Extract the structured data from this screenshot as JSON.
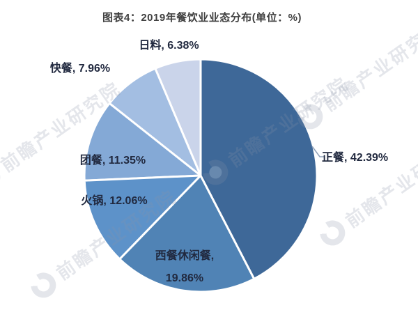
{
  "title": "图表4：2019年餐饮业业态分布(单位：%)",
  "watermark": {
    "text": "前瞻产业研究院"
  },
  "chart_data": {
    "type": "pie",
    "title": "图表4：2019年餐饮业业态分布(单位：%)",
    "unit": "%",
    "categories": [
      "正餐",
      "西餐休闲餐",
      "火锅",
      "团餐",
      "快餐",
      "日料"
    ],
    "values": [
      42.39,
      19.86,
      12.06,
      11.35,
      7.96,
      6.38
    ],
    "labels": [
      "正餐, 42.39%",
      "西餐休闲餐, 19.86%",
      "火锅, 12.06%",
      "团餐, 11.35%",
      "快餐, 7.96%",
      "日料, 6.38%"
    ],
    "colors": [
      "#3E6898",
      "#5083B5",
      "#5D92C9",
      "#84A9D6",
      "#A3BEE2",
      "#CAD4EA"
    ],
    "start_angle_deg_clockwise_from_top": 0,
    "slice_border_color": "#ffffff",
    "label_color": "#21293f",
    "title_color": "#404040",
    "leader_line_color": "#8FA0B8",
    "legend": "none"
  }
}
